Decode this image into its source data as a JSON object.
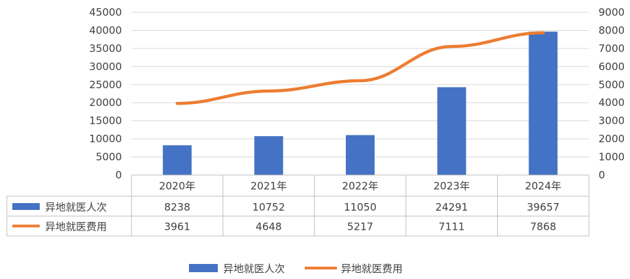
{
  "chart_data": {
    "type": "bar",
    "categories": [
      "2020年",
      "2021年",
      "2022年",
      "2023年",
      "2024年"
    ],
    "series": [
      {
        "name": "异地就医人次",
        "type": "bar",
        "axis": "left",
        "color": "#4472c4",
        "values": [
          8238,
          10752,
          11050,
          24291,
          39657
        ]
      },
      {
        "name": "异地就医费用",
        "type": "line",
        "axis": "right",
        "color": "#ed7d31",
        "values": [
          3961,
          4648,
          5217,
          7111,
          7868
        ]
      }
    ],
    "ylim": [
      0,
      45000
    ],
    "y_ticks": [
      "0",
      "5000",
      "10000",
      "15000",
      "20000",
      "25000",
      "30000",
      "35000",
      "40000",
      "45000"
    ],
    "y2lim": [
      0,
      9000
    ],
    "y2_ticks": [
      "0",
      "1000",
      "2000",
      "3000",
      "4000",
      "5000",
      "6000",
      "7000",
      "8000",
      "9000"
    ],
    "grid": true,
    "data_table": true,
    "legend": "bottom"
  }
}
